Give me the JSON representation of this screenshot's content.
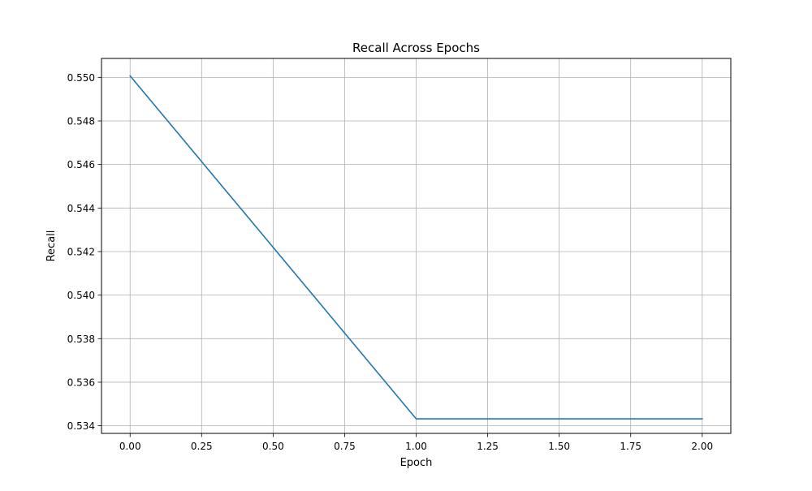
{
  "chart_data": {
    "type": "line",
    "title": "Recall Across Epochs",
    "xlabel": "Epoch",
    "ylabel": "Recall",
    "x": [
      0,
      1,
      2
    ],
    "series": [
      {
        "values": [
          0.55007,
          0.53432,
          0.53432
        ],
        "color": "#1f77b4"
      }
    ],
    "xlim": [
      -0.1,
      2.1
    ],
    "ylim": [
      0.53365,
      0.55087
    ],
    "xticks": [
      0.0,
      0.25,
      0.5,
      0.75,
      1.0,
      1.25,
      1.5,
      1.75,
      2.0
    ],
    "xtick_labels": [
      "0.00",
      "0.25",
      "0.50",
      "0.75",
      "1.00",
      "1.25",
      "1.50",
      "1.75",
      "2.00"
    ],
    "yticks": [
      0.534,
      0.536,
      0.538,
      0.54,
      0.542,
      0.544,
      0.546,
      0.548,
      0.55
    ],
    "ytick_labels": [
      "0.534",
      "0.536",
      "0.538",
      "0.540",
      "0.542",
      "0.544",
      "0.546",
      "0.548",
      "0.550"
    ],
    "grid": true,
    "legend": "none"
  }
}
